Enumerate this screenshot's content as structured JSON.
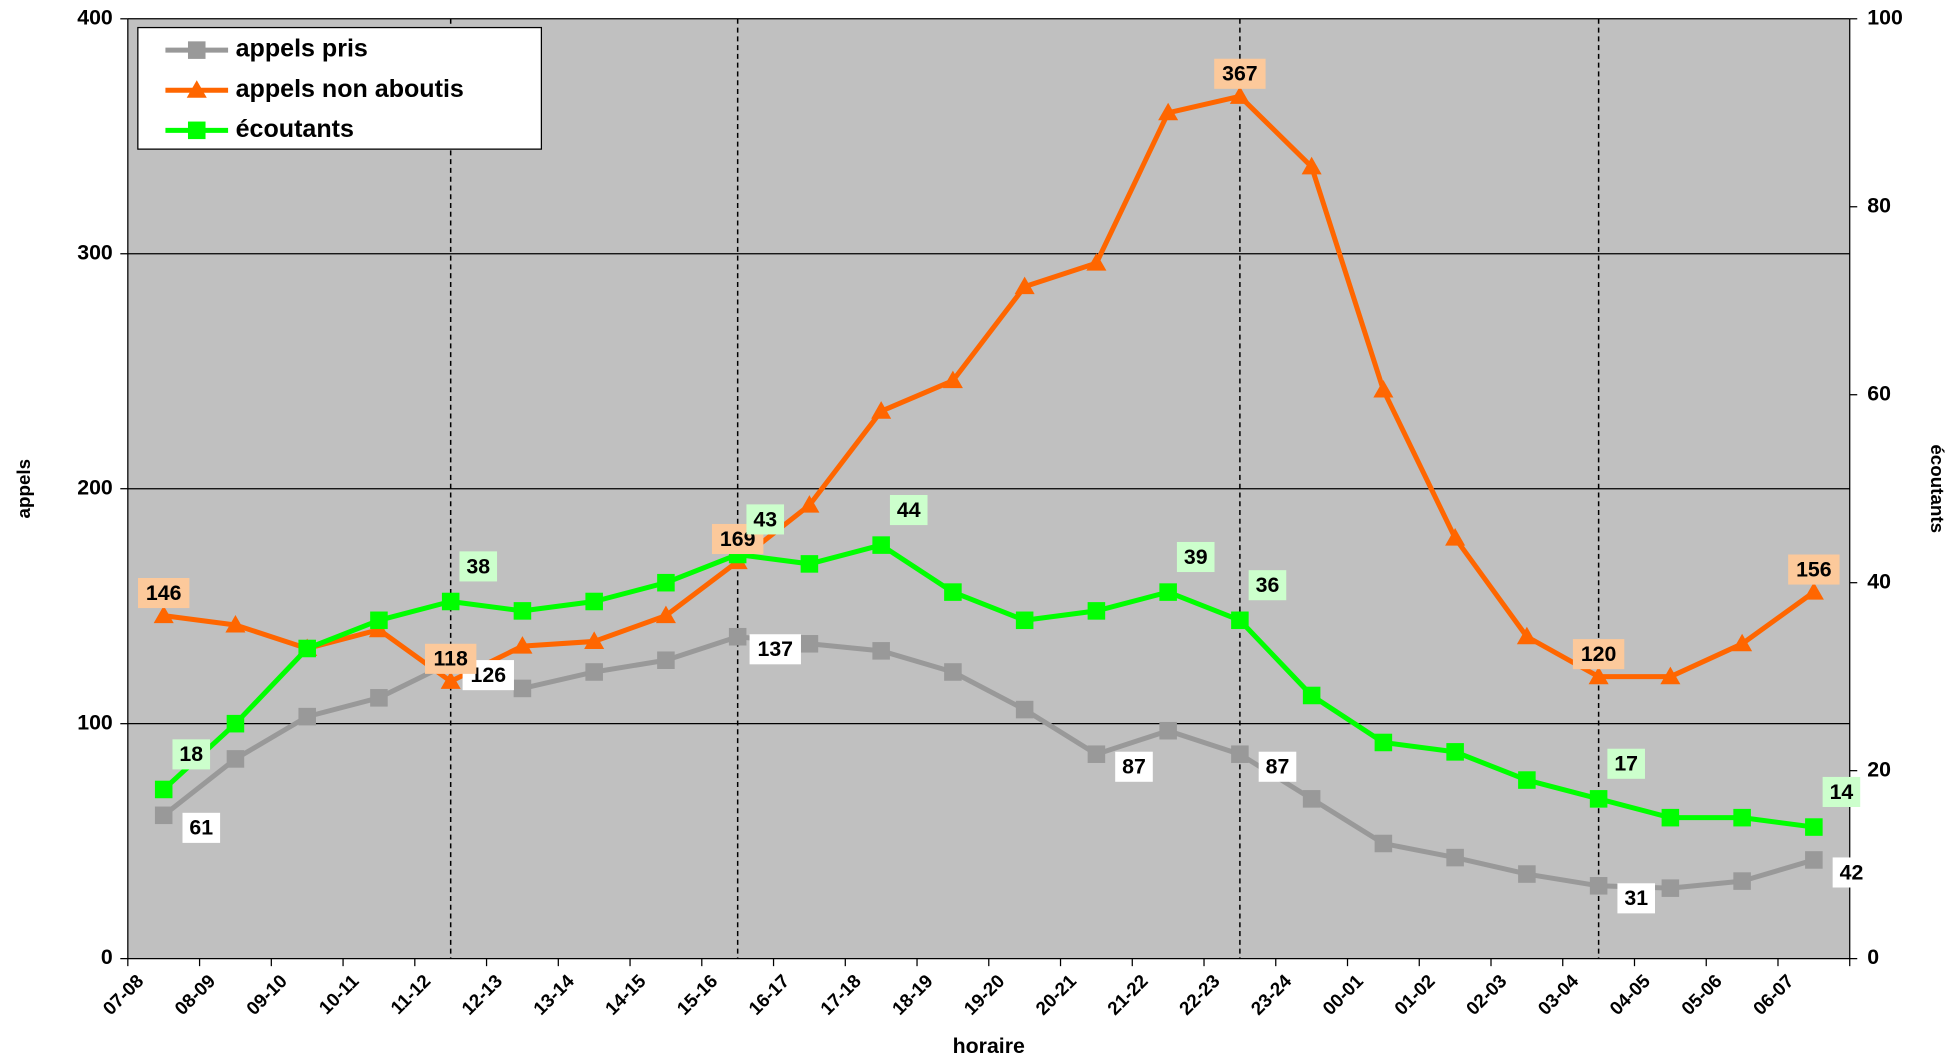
{
  "chart_data": {
    "type": "line",
    "x_label": "horaire",
    "y_label": "appels",
    "y2_label": "écoutants",
    "categories": [
      "07-08",
      "08-09",
      "09-10",
      "10-11",
      "11-12",
      "12-13",
      "13-14",
      "14-15",
      "15-16",
      "16-17",
      "17-18",
      "18-19",
      "19-20",
      "20-21",
      "21-22",
      "22-23",
      "23-24",
      "00-01",
      "01-02",
      "02-03",
      "03-04",
      "04-05",
      "05-06",
      "06-07"
    ],
    "series": [
      {
        "name": "appels pris",
        "color": "#999999",
        "marker": "square",
        "label_fill": "#ffffff",
        "values": [
          61,
          85,
          103,
          111,
          126,
          115,
          122,
          127,
          137,
          134,
          131,
          122,
          106,
          87,
          97,
          87,
          68,
          49,
          43,
          36,
          31,
          30,
          33,
          42
        ],
        "value_labels": [
          "61",
          null,
          null,
          null,
          "126",
          null,
          null,
          null,
          "137",
          null,
          null,
          null,
          null,
          "87",
          null,
          "87",
          null,
          null,
          null,
          null,
          "31",
          null,
          null,
          "42"
        ]
      },
      {
        "name": "appels non aboutis",
        "color": "#ff6600",
        "marker": "triangle",
        "label_fill": "#fcc99b",
        "values": [
          146,
          142,
          132,
          140,
          118,
          133,
          135,
          146,
          169,
          193,
          233,
          246,
          286,
          296,
          360,
          367,
          337,
          242,
          179,
          137,
          120,
          120,
          134,
          156
        ],
        "value_labels": [
          "146",
          null,
          null,
          null,
          "118",
          null,
          null,
          null,
          "169",
          null,
          null,
          null,
          null,
          null,
          null,
          "367",
          null,
          null,
          null,
          null,
          "120",
          null,
          null,
          "156"
        ]
      },
      {
        "name": "écoutants",
        "color": "#00ff00",
        "marker": "square",
        "label_fill": "#ccffcc",
        "axis": "y2",
        "values": [
          18,
          25,
          33,
          36,
          38,
          37,
          38,
          40,
          43,
          42,
          44,
          39,
          36,
          37,
          39,
          36,
          28,
          23,
          22,
          19,
          17,
          15,
          15,
          14
        ],
        "value_labels": [
          "18",
          null,
          null,
          null,
          "38",
          null,
          null,
          null,
          "43",
          null,
          "44",
          null,
          null,
          null,
          "39",
          "36",
          null,
          null,
          null,
          null,
          "17",
          null,
          null,
          "14"
        ]
      }
    ],
    "ylim": [
      0,
      400
    ],
    "yticks": [
      0,
      100,
      200,
      300,
      400
    ],
    "y2lim": [
      0,
      100
    ],
    "y2ticks": [
      0,
      20,
      40,
      60,
      80,
      100
    ],
    "grid": true,
    "legend": "upper left"
  }
}
